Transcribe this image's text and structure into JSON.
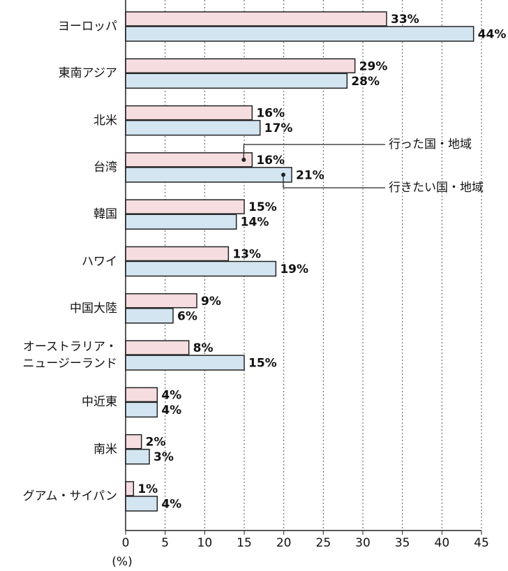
{
  "chart_data": {
    "type": "bar",
    "orientation": "horizontal",
    "categories": [
      "ヨーロッパ",
      "東南アジア",
      "北米",
      "台湾",
      "韓国",
      "ハワイ",
      "中国大陸",
      "オーストラリア・\nニュージーランド",
      "中近東",
      "南米",
      "グアム・サイパン"
    ],
    "series": [
      {
        "name": "行った国・地域",
        "color": "#f5dde0",
        "values": [
          33,
          29,
          16,
          16,
          15,
          13,
          9,
          8,
          4,
          2,
          1
        ],
        "value_labels": [
          "33%",
          "29%",
          "16%",
          "16%",
          "15%",
          "13%",
          "9%",
          "8%",
          "4%",
          "2%",
          "1%"
        ]
      },
      {
        "name": "行きたい国・地域",
        "color": "#d3e5f0",
        "values": [
          44,
          28,
          17,
          21,
          14,
          19,
          6,
          15,
          4,
          3,
          4
        ],
        "value_labels": [
          "44%",
          "28%",
          "17%",
          "21%",
          "14%",
          "19%",
          "6%",
          "15%",
          "4%",
          "3%",
          "4%"
        ]
      }
    ],
    "xlim": [
      0,
      45
    ],
    "xticks": [
      0,
      5,
      10,
      15,
      20,
      25,
      30,
      35,
      40,
      45
    ],
    "x_axis_label": "(%)",
    "grid": true
  }
}
